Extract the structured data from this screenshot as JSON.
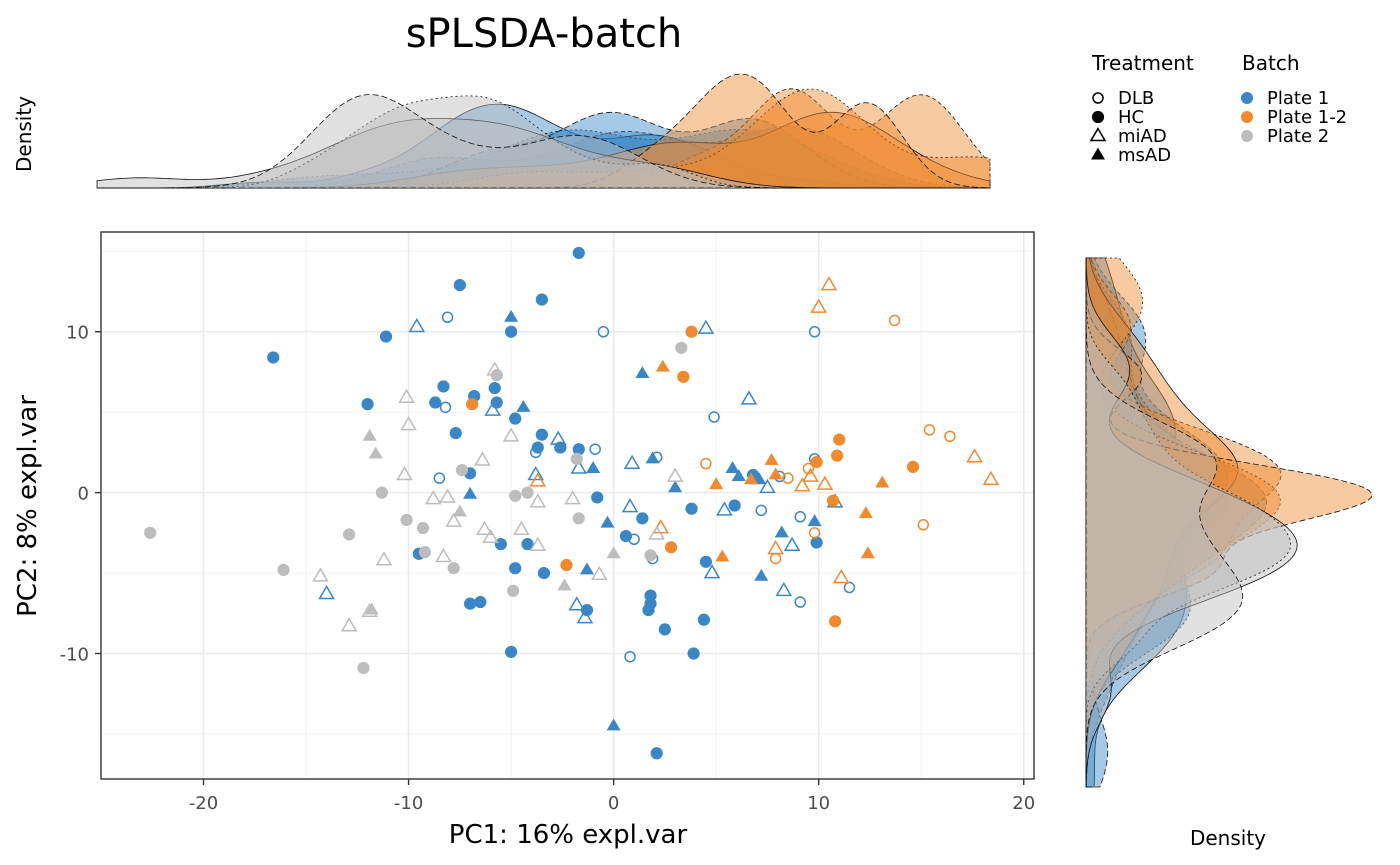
{
  "title": "sPLSDA-batch",
  "top_density_label": "Density",
  "right_density_label": "Density",
  "legend": {
    "treatment": {
      "title": "Treatment",
      "items": [
        {
          "label": "DLB",
          "shape": "circle-open"
        },
        {
          "label": "HC",
          "shape": "circle-filled"
        },
        {
          "label": "miAD",
          "shape": "triangle-open"
        },
        {
          "label": "msAD",
          "shape": "triangle-filled"
        }
      ]
    },
    "batch": {
      "title": "Batch",
      "items": [
        {
          "label": "Plate 1",
          "color": "#3a87c8"
        },
        {
          "label": "Plate 1-2",
          "color": "#f08a2e"
        },
        {
          "label": "Plate 2",
          "color": "#bdbdbd"
        }
      ]
    }
  },
  "chart_data": {
    "type": "scatter",
    "title": "sPLSDA-batch",
    "xlabel": "PC1: 16% expl.var",
    "ylabel": "PC2: 8% expl.var",
    "xlim": [
      -25,
      20.5
    ],
    "ylim": [
      -17.8,
      16.2
    ],
    "xticks": [
      -20,
      -10,
      0,
      10,
      20
    ],
    "xtick_labels": [
      "-20",
      "-10",
      "0",
      "10",
      "20"
    ],
    "yticks": [
      -10,
      0,
      10
    ],
    "ytick_labels": [
      "-10",
      "0",
      "10"
    ],
    "grid": true,
    "legend_position": "top-right",
    "marginal_density": {
      "x": "top",
      "y": "right"
    },
    "series": [
      {
        "name": "Plate 1",
        "color": "#3a87c8",
        "points": [
          {
            "x": -16.6,
            "y": 8.4,
            "t": "HC"
          },
          {
            "x": -11.1,
            "y": 9.7,
            "t": "HC"
          },
          {
            "x": -7.5,
            "y": 12.9,
            "t": "HC"
          },
          {
            "x": -1.7,
            "y": 14.9,
            "t": "HC"
          },
          {
            "x": -3.5,
            "y": 12.0,
            "t": "HC"
          },
          {
            "x": -5.0,
            "y": 10.0,
            "t": "HC"
          },
          {
            "x": -12.0,
            "y": 5.5,
            "t": "HC"
          },
          {
            "x": -8.3,
            "y": 6.6,
            "t": "HC"
          },
          {
            "x": -6.8,
            "y": 6.0,
            "t": "HC"
          },
          {
            "x": -5.8,
            "y": 6.5,
            "t": "HC"
          },
          {
            "x": -8.7,
            "y": 5.6,
            "t": "HC"
          },
          {
            "x": -5.7,
            "y": 5.6,
            "t": "HC"
          },
          {
            "x": -7.7,
            "y": 3.7,
            "t": "HC"
          },
          {
            "x": -4.8,
            "y": 4.6,
            "t": "HC"
          },
          {
            "x": -3.5,
            "y": 3.6,
            "t": "HC"
          },
          {
            "x": -2.6,
            "y": 2.8,
            "t": "HC"
          },
          {
            "x": -3.7,
            "y": 2.8,
            "t": "HC"
          },
          {
            "x": -1.7,
            "y": 2.7,
            "t": "HC"
          },
          {
            "x": -7.0,
            "y": 1.2,
            "t": "HC"
          },
          {
            "x": -0.8,
            "y": -0.3,
            "t": "HC"
          },
          {
            "x": -9.5,
            "y": -3.8,
            "t": "HC"
          },
          {
            "x": -5.5,
            "y": -3.2,
            "t": "HC"
          },
          {
            "x": -4.2,
            "y": -3.2,
            "t": "HC"
          },
          {
            "x": -4.8,
            "y": -4.7,
            "t": "HC"
          },
          {
            "x": -3.4,
            "y": -5.0,
            "t": "HC"
          },
          {
            "x": -7.0,
            "y": -6.9,
            "t": "HC"
          },
          {
            "x": -6.5,
            "y": -6.8,
            "t": "HC"
          },
          {
            "x": -1.3,
            "y": -7.3,
            "t": "HC"
          },
          {
            "x": -5.0,
            "y": -9.9,
            "t": "HC"
          },
          {
            "x": 0.6,
            "y": -2.7,
            "t": "HC"
          },
          {
            "x": 1.4,
            "y": -1.6,
            "t": "HC"
          },
          {
            "x": 1.8,
            "y": -6.4,
            "t": "HC"
          },
          {
            "x": 1.8,
            "y": -6.9,
            "t": "HC"
          },
          {
            "x": 1.7,
            "y": -7.3,
            "t": "HC"
          },
          {
            "x": 2.5,
            "y": -8.5,
            "t": "HC"
          },
          {
            "x": 3.8,
            "y": -1.0,
            "t": "HC"
          },
          {
            "x": 4.5,
            "y": -4.3,
            "t": "HC"
          },
          {
            "x": 4.4,
            "y": -7.9,
            "t": "HC"
          },
          {
            "x": 3.9,
            "y": -10.0,
            "t": "HC"
          },
          {
            "x": 2.1,
            "y": -16.2,
            "t": "HC"
          },
          {
            "x": 5.9,
            "y": -0.8,
            "t": "HC"
          },
          {
            "x": 6.8,
            "y": 1.1,
            "t": "HC"
          },
          {
            "x": 9.9,
            "y": -3.1,
            "t": "HC"
          },
          {
            "x": -8.1,
            "y": 10.9,
            "t": "DLB"
          },
          {
            "x": -0.5,
            "y": 10.0,
            "t": "DLB"
          },
          {
            "x": 9.8,
            "y": 10.0,
            "t": "DLB"
          },
          {
            "x": -8.2,
            "y": 5.3,
            "t": "DLB"
          },
          {
            "x": -3.8,
            "y": 2.5,
            "t": "DLB"
          },
          {
            "x": -0.9,
            "y": 2.7,
            "t": "DLB"
          },
          {
            "x": 2.1,
            "y": 2.2,
            "t": "DLB"
          },
          {
            "x": 4.9,
            "y": 4.7,
            "t": "DLB"
          },
          {
            "x": -8.5,
            "y": 0.9,
            "t": "DLB"
          },
          {
            "x": 1.0,
            "y": -2.9,
            "t": "DLB"
          },
          {
            "x": 1.9,
            "y": -4.1,
            "t": "DLB"
          },
          {
            "x": 7.2,
            "y": -1.1,
            "t": "DLB"
          },
          {
            "x": 9.8,
            "y": 2.1,
            "t": "DLB"
          },
          {
            "x": 9.1,
            "y": -1.5,
            "t": "DLB"
          },
          {
            "x": 9.1,
            "y": -6.8,
            "t": "DLB"
          },
          {
            "x": 11.5,
            "y": -5.9,
            "t": "DLB"
          },
          {
            "x": 0.8,
            "y": -10.2,
            "t": "DLB"
          },
          {
            "x": 8.1,
            "y": 1.0,
            "t": "DLB"
          },
          {
            "x": -9.6,
            "y": 10.3,
            "t": "miAD"
          },
          {
            "x": 4.5,
            "y": 10.2,
            "t": "miAD"
          },
          {
            "x": -5.9,
            "y": 5.1,
            "t": "miAD"
          },
          {
            "x": 6.6,
            "y": 5.8,
            "t": "miAD"
          },
          {
            "x": -2.7,
            "y": 3.3,
            "t": "miAD"
          },
          {
            "x": -3.8,
            "y": 1.1,
            "t": "miAD"
          },
          {
            "x": -1.7,
            "y": 1.5,
            "t": "miAD"
          },
          {
            "x": 0.9,
            "y": 1.8,
            "t": "miAD"
          },
          {
            "x": 0.8,
            "y": -0.9,
            "t": "miAD"
          },
          {
            "x": 5.4,
            "y": -1.1,
            "t": "miAD"
          },
          {
            "x": 7.5,
            "y": 0.3,
            "t": "miAD"
          },
          {
            "x": 10.8,
            "y": -0.6,
            "t": "miAD"
          },
          {
            "x": 8.7,
            "y": -3.3,
            "t": "miAD"
          },
          {
            "x": 4.8,
            "y": -5.0,
            "t": "miAD"
          },
          {
            "x": 8.3,
            "y": -6.1,
            "t": "miAD"
          },
          {
            "x": -14.0,
            "y": -6.3,
            "t": "miAD"
          },
          {
            "x": -1.8,
            "y": -7.0,
            "t": "miAD"
          },
          {
            "x": -1.4,
            "y": -7.8,
            "t": "miAD"
          },
          {
            "x": -5.0,
            "y": 10.9,
            "t": "msAD"
          },
          {
            "x": -4.4,
            "y": 5.3,
            "t": "msAD"
          },
          {
            "x": 1.4,
            "y": 7.4,
            "t": "msAD"
          },
          {
            "x": -1.0,
            "y": 1.5,
            "t": "msAD"
          },
          {
            "x": 1.9,
            "y": 2.1,
            "t": "msAD"
          },
          {
            "x": -7.0,
            "y": -0.1,
            "t": "msAD"
          },
          {
            "x": 3.0,
            "y": 0.3,
            "t": "msAD"
          },
          {
            "x": 5.8,
            "y": 1.5,
            "t": "msAD"
          },
          {
            "x": 6.1,
            "y": 1.0,
            "t": "msAD"
          },
          {
            "x": 7.1,
            "y": 0.8,
            "t": "msAD"
          },
          {
            "x": -0.3,
            "y": -1.9,
            "t": "msAD"
          },
          {
            "x": 8.2,
            "y": -2.5,
            "t": "msAD"
          },
          {
            "x": 9.8,
            "y": -1.8,
            "t": "msAD"
          },
          {
            "x": 7.2,
            "y": -5.2,
            "t": "msAD"
          },
          {
            "x": -1.3,
            "y": -4.8,
            "t": "msAD"
          },
          {
            "x": 0.0,
            "y": -14.5,
            "t": "msAD"
          }
        ]
      },
      {
        "name": "Plate 1-2",
        "color": "#f08a2e",
        "points": [
          {
            "x": 3.8,
            "y": 10.0,
            "t": "HC"
          },
          {
            "x": 3.4,
            "y": 7.2,
            "t": "HC"
          },
          {
            "x": -6.9,
            "y": 5.5,
            "t": "HC"
          },
          {
            "x": 11.0,
            "y": 3.3,
            "t": "HC"
          },
          {
            "x": 10.9,
            "y": 2.3,
            "t": "HC"
          },
          {
            "x": 14.6,
            "y": 1.6,
            "t": "HC"
          },
          {
            "x": 9.9,
            "y": 1.9,
            "t": "HC"
          },
          {
            "x": 10.7,
            "y": -0.5,
            "t": "HC"
          },
          {
            "x": 2.8,
            "y": -3.4,
            "t": "HC"
          },
          {
            "x": -2.3,
            "y": -4.5,
            "t": "HC"
          },
          {
            "x": 10.8,
            "y": -8.0,
            "t": "HC"
          },
          {
            "x": 13.7,
            "y": 10.7,
            "t": "DLB"
          },
          {
            "x": 15.4,
            "y": 3.9,
            "t": "DLB"
          },
          {
            "x": 16.4,
            "y": 3.5,
            "t": "DLB"
          },
          {
            "x": 4.5,
            "y": 1.8,
            "t": "DLB"
          },
          {
            "x": 9.5,
            "y": 1.5,
            "t": "DLB"
          },
          {
            "x": 15.1,
            "y": -2.0,
            "t": "DLB"
          },
          {
            "x": 9.8,
            "y": -2.5,
            "t": "DLB"
          },
          {
            "x": 7.9,
            "y": -4.1,
            "t": "DLB"
          },
          {
            "x": 8.5,
            "y": 0.9,
            "t": "DLB"
          },
          {
            "x": 10.5,
            "y": 12.9,
            "t": "miAD"
          },
          {
            "x": 10.0,
            "y": 11.5,
            "t": "miAD"
          },
          {
            "x": 17.6,
            "y": 2.2,
            "t": "miAD"
          },
          {
            "x": 18.4,
            "y": 0.8,
            "t": "miAD"
          },
          {
            "x": 9.2,
            "y": 0.4,
            "t": "miAD"
          },
          {
            "x": 9.6,
            "y": 1.0,
            "t": "miAD"
          },
          {
            "x": 10.3,
            "y": 0.5,
            "t": "miAD"
          },
          {
            "x": 2.3,
            "y": -2.2,
            "t": "miAD"
          },
          {
            "x": 7.9,
            "y": -3.5,
            "t": "miAD"
          },
          {
            "x": 11.1,
            "y": -5.3,
            "t": "miAD"
          },
          {
            "x": -3.7,
            "y": 0.7,
            "t": "miAD"
          },
          {
            "x": 2.4,
            "y": 7.8,
            "t": "msAD"
          },
          {
            "x": 7.7,
            "y": 2.0,
            "t": "msAD"
          },
          {
            "x": 7.9,
            "y": 1.1,
            "t": "msAD"
          },
          {
            "x": 6.7,
            "y": 0.8,
            "t": "msAD"
          },
          {
            "x": 5.0,
            "y": 0.5,
            "t": "msAD"
          },
          {
            "x": 13.1,
            "y": 0.6,
            "t": "msAD"
          },
          {
            "x": 12.3,
            "y": -1.3,
            "t": "msAD"
          },
          {
            "x": 5.3,
            "y": -4.0,
            "t": "msAD"
          },
          {
            "x": 12.4,
            "y": -3.8,
            "t": "msAD"
          }
        ]
      },
      {
        "name": "Plate 2",
        "color": "#bdbdbd",
        "points": [
          {
            "x": -22.6,
            "y": -2.5,
            "t": "HC"
          },
          {
            "x": -16.1,
            "y": -4.8,
            "t": "HC"
          },
          {
            "x": -12.9,
            "y": -2.6,
            "t": "HC"
          },
          {
            "x": -12.2,
            "y": -10.9,
            "t": "HC"
          },
          {
            "x": -11.3,
            "y": 0.0,
            "t": "HC"
          },
          {
            "x": -10.1,
            "y": -1.7,
            "t": "HC"
          },
          {
            "x": -9.3,
            "y": -2.2,
            "t": "HC"
          },
          {
            "x": -9.2,
            "y": -3.7,
            "t": "HC"
          },
          {
            "x": -7.4,
            "y": 1.4,
            "t": "HC"
          },
          {
            "x": -7.8,
            "y": -4.7,
            "t": "HC"
          },
          {
            "x": -5.7,
            "y": 7.3,
            "t": "HC"
          },
          {
            "x": -4.8,
            "y": -0.2,
            "t": "HC"
          },
          {
            "x": -4.2,
            "y": 0.0,
            "t": "HC"
          },
          {
            "x": -4.9,
            "y": -6.1,
            "t": "HC"
          },
          {
            "x": -1.7,
            "y": -1.6,
            "t": "HC"
          },
          {
            "x": -1.8,
            "y": 2.1,
            "t": "HC"
          },
          {
            "x": 3.3,
            "y": 9.0,
            "t": "HC"
          },
          {
            "x": 1.8,
            "y": -3.9,
            "t": "HC"
          },
          {
            "x": -8.1,
            "y": -0.3,
            "t": "miAD"
          },
          {
            "x": -10.1,
            "y": 5.9,
            "t": "miAD"
          },
          {
            "x": -10.0,
            "y": 4.2,
            "t": "miAD"
          },
          {
            "x": -10.2,
            "y": 1.1,
            "t": "miAD"
          },
          {
            "x": -5.8,
            "y": 7.6,
            "t": "miAD"
          },
          {
            "x": -6.4,
            "y": 2.0,
            "t": "miAD"
          },
          {
            "x": -5.0,
            "y": 3.5,
            "t": "miAD"
          },
          {
            "x": -8.8,
            "y": -0.4,
            "t": "miAD"
          },
          {
            "x": -7.8,
            "y": -1.8,
            "t": "miAD"
          },
          {
            "x": -6.3,
            "y": -2.3,
            "t": "miAD"
          },
          {
            "x": -6.0,
            "y": -2.8,
            "t": "miAD"
          },
          {
            "x": -4.5,
            "y": -2.3,
            "t": "miAD"
          },
          {
            "x": -3.7,
            "y": -3.3,
            "t": "miAD"
          },
          {
            "x": -3.7,
            "y": -0.6,
            "t": "miAD"
          },
          {
            "x": -2.0,
            "y": -0.4,
            "t": "miAD"
          },
          {
            "x": -8.3,
            "y": -4.0,
            "t": "miAD"
          },
          {
            "x": -11.2,
            "y": -4.2,
            "t": "miAD"
          },
          {
            "x": -14.3,
            "y": -5.2,
            "t": "miAD"
          },
          {
            "x": -11.9,
            "y": -7.4,
            "t": "miAD"
          },
          {
            "x": -12.9,
            "y": -8.3,
            "t": "miAD"
          },
          {
            "x": -0.7,
            "y": -5.1,
            "t": "miAD"
          },
          {
            "x": 3.0,
            "y": 1.0,
            "t": "miAD"
          },
          {
            "x": 2.1,
            "y": -2.6,
            "t": "miAD"
          },
          {
            "x": -11.9,
            "y": 3.5,
            "t": "msAD"
          },
          {
            "x": -11.6,
            "y": 2.4,
            "t": "msAD"
          },
          {
            "x": -7.5,
            "y": -1.2,
            "t": "msAD"
          },
          {
            "x": -11.8,
            "y": -7.3,
            "t": "msAD"
          },
          {
            "x": -2.4,
            "y": -5.8,
            "t": "msAD"
          },
          {
            "x": 0.0,
            "y": -3.8,
            "t": "msAD"
          }
        ]
      }
    ]
  }
}
